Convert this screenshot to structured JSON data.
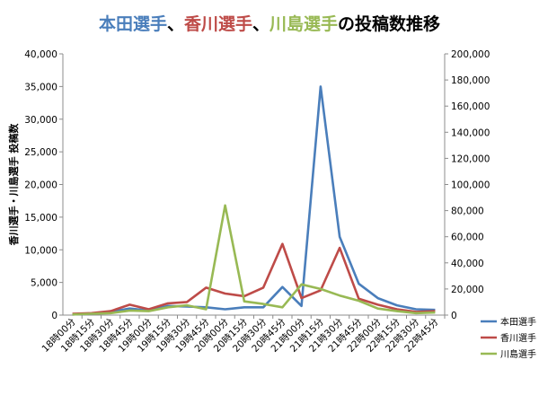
{
  "chart_data": {
    "type": "line",
    "title": {
      "segments": [
        {
          "text": "本田選手",
          "color": "#4a7ebb"
        },
        {
          "text": "、",
          "color": "#000000"
        },
        {
          "text": "香川選手",
          "color": "#be4b48"
        },
        {
          "text": "、",
          "color": "#000000"
        },
        {
          "text": "川島選手",
          "color": "#98b954"
        },
        {
          "text": "の投稿数推移",
          "color": "#000000"
        }
      ]
    },
    "y_left_label": "香川選手・川島選手 投稿数",
    "y_left_ticks": [
      "0",
      "5,000",
      "10,000",
      "15,000",
      "20,000",
      "25,000",
      "30,000",
      "35,000",
      "40,000"
    ],
    "y_right_ticks": [
      "0",
      "20,000",
      "40,000",
      "60,000",
      "80,000",
      "100,000",
      "120,000",
      "140,000",
      "160,000",
      "180,000",
      "200,000"
    ],
    "y_left_lim": [
      0,
      40000
    ],
    "y_right_lim": [
      0,
      200000
    ],
    "categories": [
      "18時00分",
      "18時15分",
      "18時30分",
      "18時45分",
      "19時00分",
      "19時15分",
      "19時30分",
      "19時45分",
      "20時00分",
      "20時15分",
      "20時30分",
      "20時45分",
      "21時00分",
      "21時15分",
      "21時30分",
      "21時45分",
      "22時00分",
      "22時15分",
      "22時30分",
      "22時45分"
    ],
    "series": [
      {
        "name": "本田選手",
        "axis": "right",
        "color": "#4a7ebb",
        "values": [
          500,
          1000,
          2500,
          5000,
          3500,
          7000,
          6500,
          6000,
          4500,
          6000,
          6000,
          21500,
          7000,
          175000,
          60000,
          24000,
          13000,
          7500,
          4500,
          4000
        ]
      },
      {
        "name": "香川選手",
        "axis": "left",
        "color": "#be4b48",
        "values": [
          200,
          300,
          600,
          1600,
          900,
          1800,
          2000,
          4200,
          3300,
          2900,
          4200,
          10900,
          2600,
          3800,
          10300,
          2500,
          1600,
          900,
          500,
          600
        ]
      },
      {
        "name": "川島選手",
        "axis": "left",
        "color": "#98b954",
        "values": [
          100,
          200,
          300,
          700,
          600,
          1200,
          1500,
          900,
          16800,
          2100,
          1700,
          1200,
          4700,
          4000,
          3000,
          2200,
          1000,
          600,
          300,
          400
        ]
      }
    ],
    "grid": false,
    "legend_position": "right"
  }
}
